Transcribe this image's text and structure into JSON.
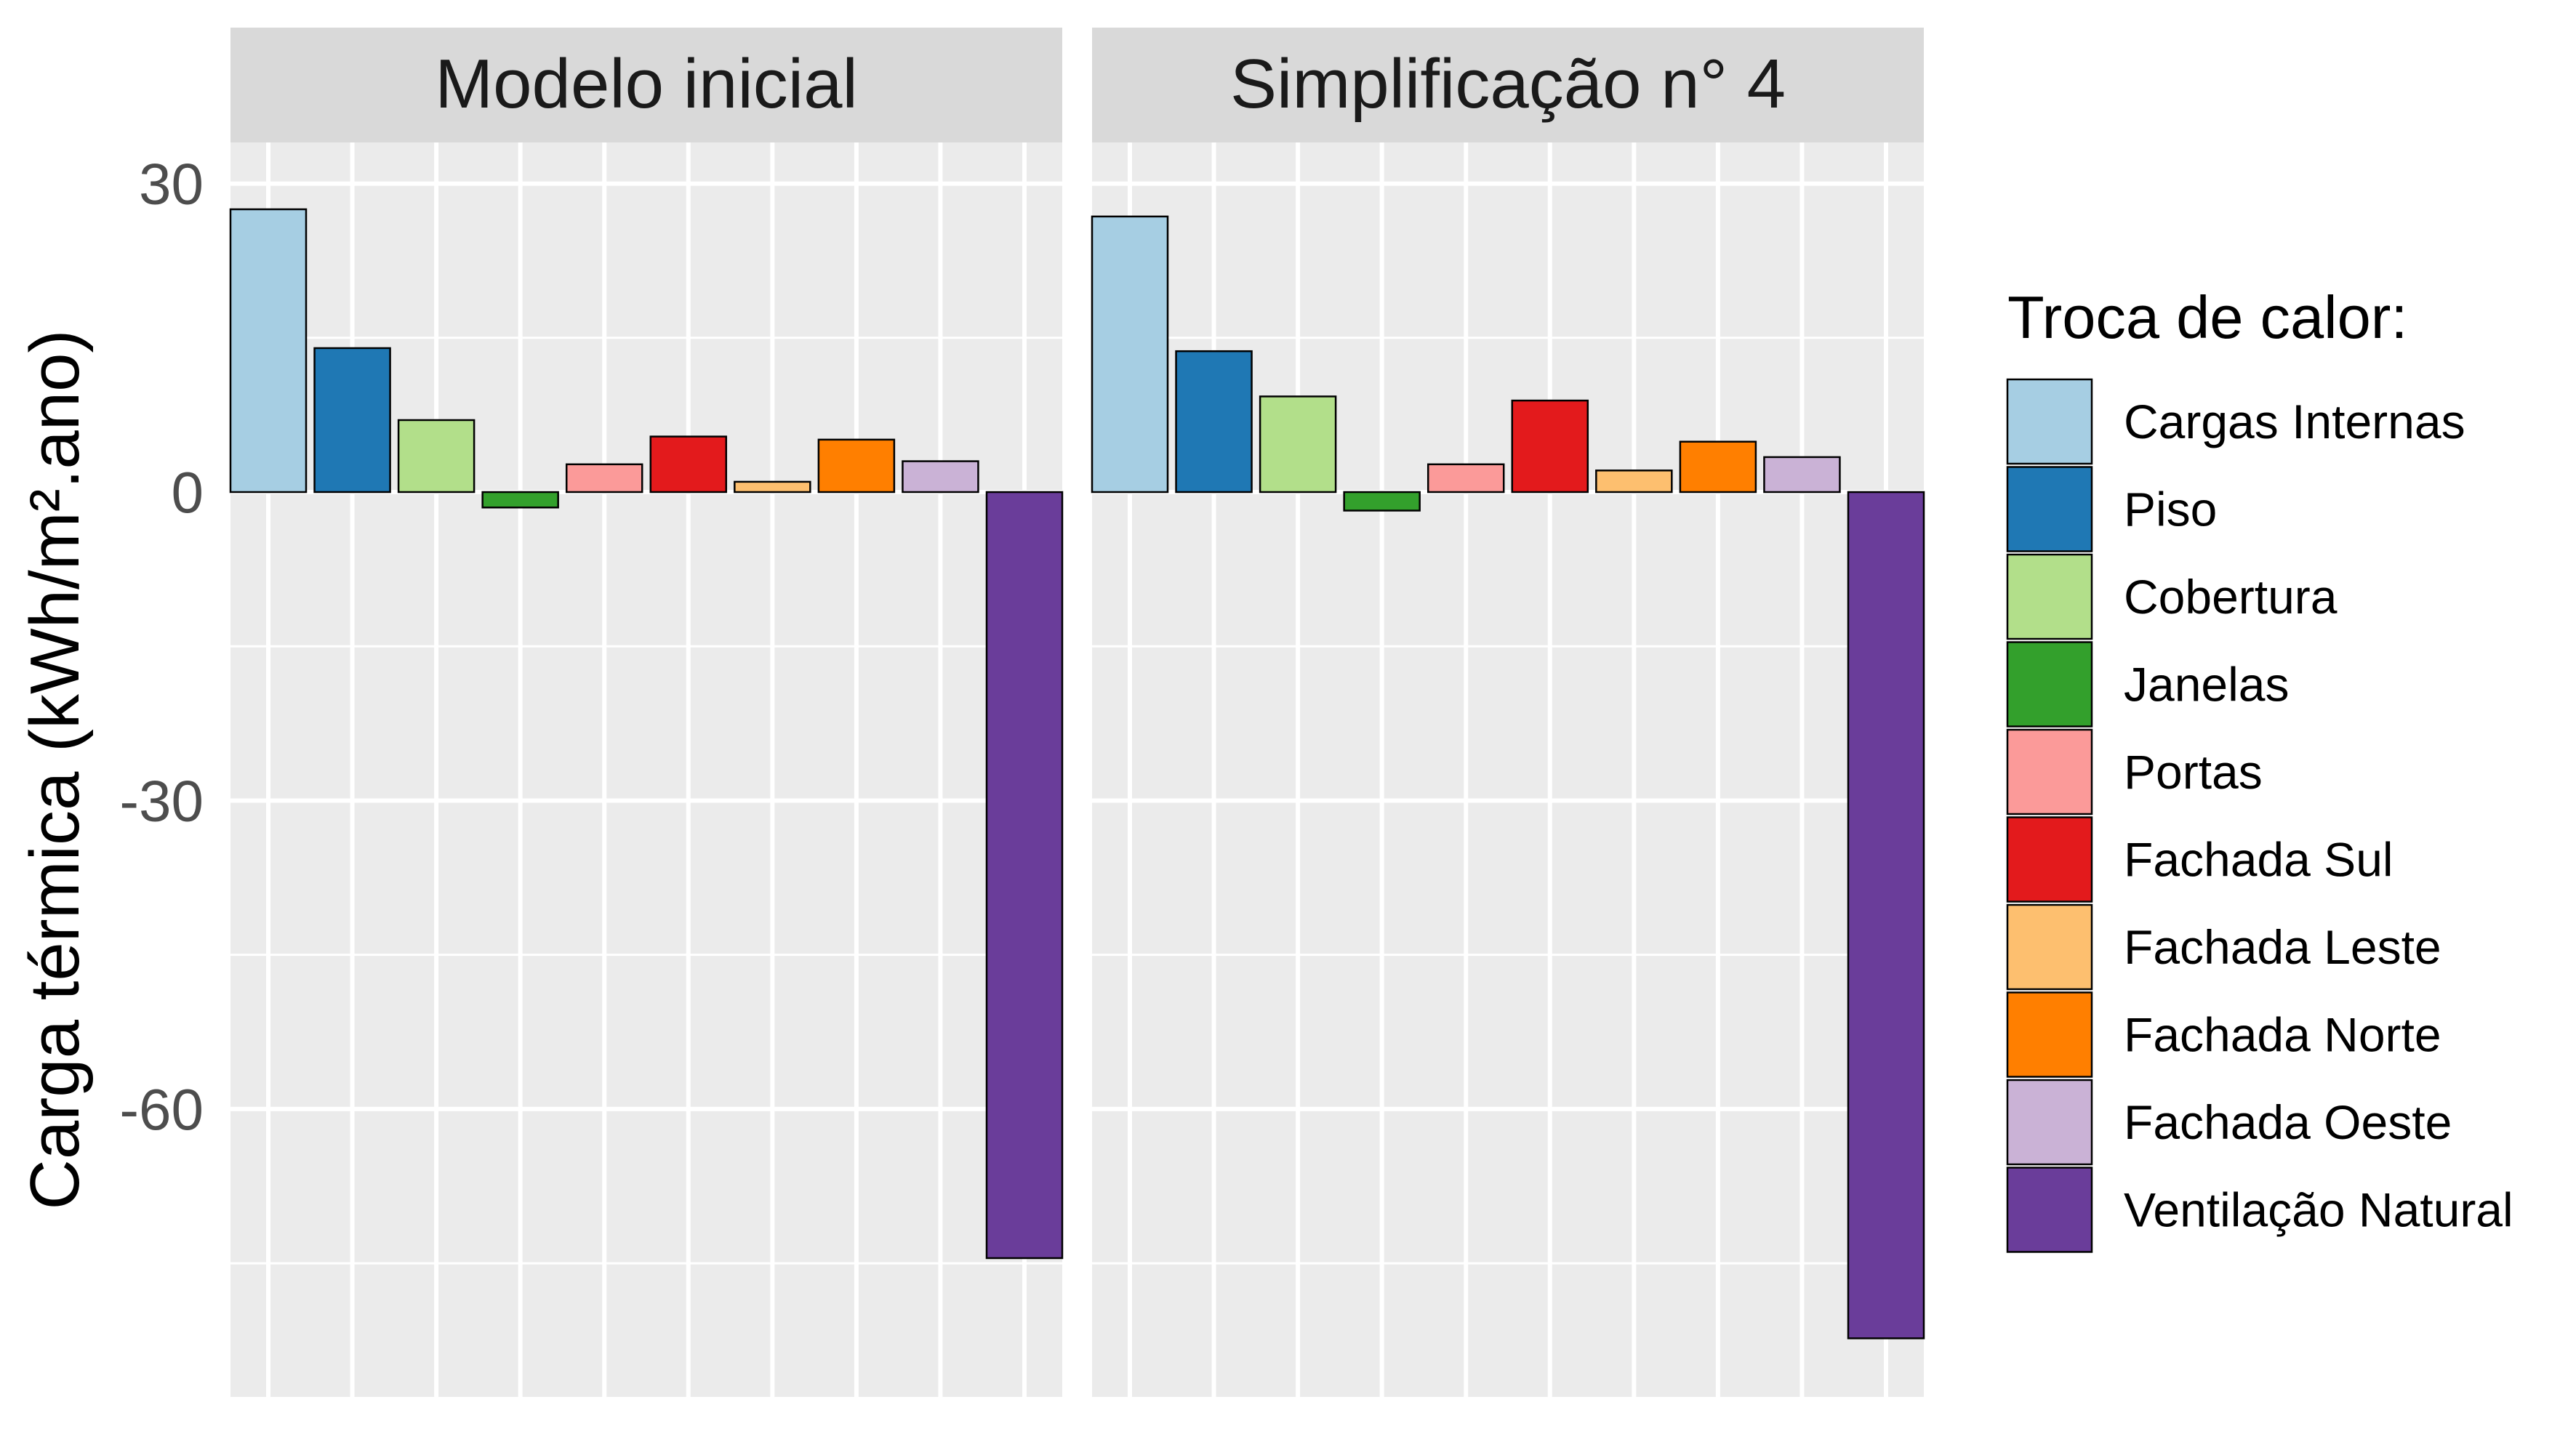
{
  "chart_data": {
    "type": "bar",
    "ylabel": "Carga térmica (kWh/m².ano)",
    "ylim": [
      -88,
      34
    ],
    "yticks": [
      30,
      0,
      -30,
      -60
    ],
    "grid": true,
    "facets": [
      "Modelo inicial",
      "Simplificação n° 4"
    ],
    "categories": [
      "Cargas Internas",
      "Piso",
      "Cobertura",
      "Janelas",
      "Portas",
      "Fachada Sul",
      "Fachada Leste",
      "Fachada Norte",
      "Fachada Oeste",
      "Ventilação Natural"
    ],
    "colors": [
      "#a6cee3",
      "#1f78b4",
      "#b2df8a",
      "#33a02c",
      "#fb9a99",
      "#e31a1c",
      "#fdbf6f",
      "#ff7f00",
      "#cab2d6",
      "#6a3d9a"
    ],
    "series": [
      {
        "facet": "Modelo inicial",
        "values": [
          27.5,
          14.0,
          7.0,
          -1.5,
          2.7,
          5.4,
          1.0,
          5.1,
          3.0,
          -74.5
        ]
      },
      {
        "facet": "Simplificação n° 4",
        "values": [
          26.8,
          13.7,
          9.3,
          -1.8,
          2.7,
          8.9,
          2.1,
          4.9,
          3.4,
          -82.3
        ]
      }
    ],
    "legend": {
      "title": "Troca de calor:",
      "placement": "right"
    }
  }
}
